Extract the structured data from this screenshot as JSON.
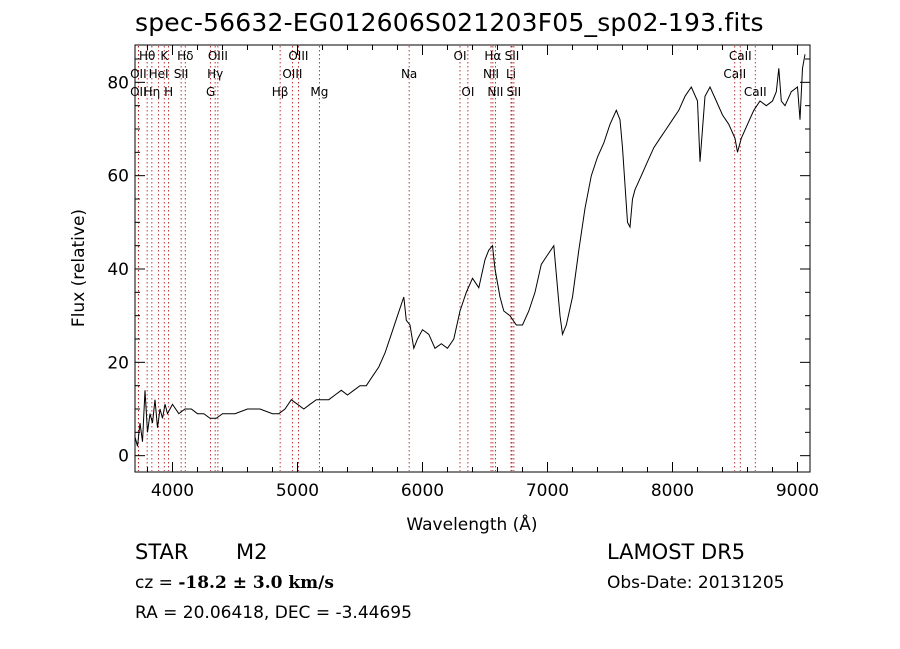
{
  "header": {
    "title": "spec-56632-EG012606S021203F05_sp02-193.fits"
  },
  "info": {
    "class": "STAR",
    "subclass": "M2",
    "cz_prefix": "cz = ",
    "cz_value": "-18.2 ± 3.0 km/s",
    "ra_dec": "RA =  20.06418, DEC =  -3.44695",
    "survey": "LAMOST  DR5",
    "obs_date": "Obs-Date: 20131205"
  },
  "chart_data": {
    "type": "line",
    "title": "spec-56632-EG012606S021203F05_sp02-193.fits",
    "xlabel": "Wavelength (Å)",
    "ylabel": "Flux (relative)",
    "xlim": [
      3700,
      9100
    ],
    "ylim": [
      -3.5,
      88
    ],
    "xticks": [
      4000,
      5000,
      6000,
      7000,
      8000,
      9000
    ],
    "yticks": [
      0,
      20,
      40,
      60,
      80
    ],
    "grid": false,
    "line_color": "#000000",
    "marker_color": "#b00000",
    "series": [
      {
        "x": [
          3700,
          3720,
          3740,
          3760,
          3780,
          3800,
          3820,
          3840,
          3860,
          3880,
          3900,
          3920,
          3940,
          3960,
          3980,
          4000,
          4050,
          4100,
          4150,
          4200,
          4250,
          4300,
          4350,
          4400,
          4450,
          4500,
          4600,
          4700,
          4800,
          4850,
          4900,
          4950,
          5000,
          5050,
          5100,
          5150,
          5200,
          5250,
          5300,
          5350,
          5400,
          5450,
          5500,
          5550,
          5600,
          5650,
          5700,
          5750,
          5800,
          5850,
          5870,
          5900,
          5930,
          5960,
          6000,
          6050,
          6100,
          6150,
          6200,
          6250,
          6300,
          6350,
          6400,
          6450,
          6500,
          6530,
          6560,
          6580,
          6600,
          6620,
          6650,
          6700,
          6750,
          6800,
          6850,
          6900,
          6950,
          7000,
          7050,
          7080,
          7100,
          7120,
          7150,
          7200,
          7250,
          7300,
          7350,
          7400,
          7450,
          7500,
          7550,
          7580,
          7600,
          7620,
          7640,
          7660,
          7680,
          7700,
          7750,
          7800,
          7850,
          7900,
          7950,
          8000,
          8050,
          8100,
          8150,
          8200,
          8220,
          8240,
          8260,
          8300,
          8350,
          8400,
          8450,
          8500,
          8520,
          8550,
          8600,
          8650,
          8700,
          8750,
          8800,
          8830,
          8850,
          8870,
          8900,
          8950,
          9000,
          9020,
          9040,
          9060
        ],
        "y": [
          4,
          2,
          7,
          3,
          14,
          5,
          9,
          7,
          12,
          6,
          10,
          8,
          11,
          9,
          10,
          11,
          9,
          10,
          10,
          9,
          9,
          8,
          8,
          9,
          9,
          9,
          10,
          10,
          9,
          9,
          10,
          12,
          11,
          10,
          11,
          12,
          12,
          12,
          13,
          14,
          13,
          14,
          15,
          15,
          17,
          19,
          22,
          26,
          30,
          34,
          29,
          28,
          23,
          25,
          27,
          26,
          23,
          24,
          23,
          25,
          31,
          35,
          38,
          36,
          42,
          44,
          45,
          40,
          37,
          34,
          31,
          30,
          28,
          28,
          31,
          35,
          41,
          43,
          45,
          36,
          30,
          26,
          28,
          34,
          44,
          53,
          60,
          64,
          67,
          71,
          74,
          72,
          66,
          58,
          50,
          49,
          55,
          57,
          60,
          63,
          66,
          68,
          70,
          72,
          74,
          77,
          79,
          76,
          63,
          70,
          77,
          79,
          76,
          73,
          71,
          68,
          65,
          68,
          71,
          74,
          76,
          75,
          76,
          78,
          83,
          76,
          75,
          78,
          79,
          72,
          83,
          86
        ]
      }
    ],
    "annotations": [
      {
        "label": "Hθ",
        "x": 3797,
        "row": 1
      },
      {
        "label": "OII",
        "x": 3727,
        "row": 2
      },
      {
        "label": "OII",
        "x": 3727,
        "row": 3
      },
      {
        "label": "Hη",
        "x": 3835,
        "row": 3
      },
      {
        "label": "K",
        "x": 3934,
        "row": 1
      },
      {
        "label": "HeI",
        "x": 3889,
        "row": 2
      },
      {
        "label": "H",
        "x": 3969,
        "row": 3
      },
      {
        "label": "Hδ",
        "x": 4102,
        "row": 1
      },
      {
        "label": "SII",
        "x": 4069,
        "row": 2
      },
      {
        "label": "OIII",
        "x": 4363,
        "row": 1
      },
      {
        "label": "Hγ",
        "x": 4341,
        "row": 2
      },
      {
        "label": "G",
        "x": 4305,
        "row": 3
      },
      {
        "label": "OIII",
        "x": 5007,
        "row": 1
      },
      {
        "label": "OIII",
        "x": 4959,
        "row": 2
      },
      {
        "label": "Hβ",
        "x": 4861,
        "row": 3
      },
      {
        "label": "Mg",
        "x": 5175,
        "row": 3
      },
      {
        "label": "Na",
        "x": 5893,
        "row": 2
      },
      {
        "label": "OI",
        "x": 6300,
        "row": 1
      },
      {
        "label": "OI",
        "x": 6363,
        "row": 3
      },
      {
        "label": "Hα",
        "x": 6563,
        "row": 1
      },
      {
        "label": "NII",
        "x": 6548,
        "row": 2
      },
      {
        "label": "NII",
        "x": 6583,
        "row": 3
      },
      {
        "label": "SII",
        "x": 6716,
        "row": 1
      },
      {
        "label": "Li",
        "x": 6708,
        "row": 2
      },
      {
        "label": "SII",
        "x": 6731,
        "row": 3
      },
      {
        "label": "CaII",
        "x": 8542,
        "row": 1
      },
      {
        "label": "CaII",
        "x": 8498,
        "row": 2
      },
      {
        "label": "CaII",
        "x": 8662,
        "row": 3
      }
    ]
  }
}
